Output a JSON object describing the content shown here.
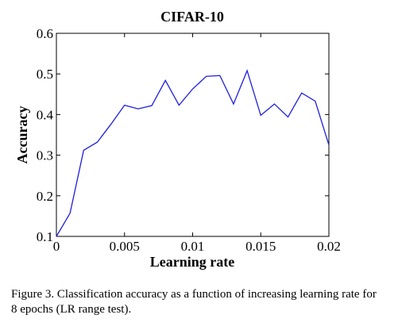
{
  "chart_data": {
    "type": "line",
    "title": "CIFAR-10",
    "xlabel": "Learning rate",
    "ylabel": "Accuracy",
    "xlim": [
      0,
      0.02
    ],
    "ylim": [
      0.1,
      0.6
    ],
    "x_ticks": [
      0,
      0.005,
      0.01,
      0.015,
      0.02
    ],
    "x_tick_labels": [
      "0",
      "0.005",
      "0.01",
      "0.015",
      "0.02"
    ],
    "y_ticks": [
      0.1,
      0.2,
      0.3,
      0.4,
      0.5,
      0.6
    ],
    "y_tick_labels": [
      "0.1",
      "0.2",
      "0.3",
      "0.4",
      "0.5",
      "0.6"
    ],
    "grid": false,
    "series": [
      {
        "color": "#1f1fe0",
        "x": [
          0,
          0.001,
          0.002,
          0.003,
          0.004,
          0.005,
          0.006,
          0.007,
          0.008,
          0.009,
          0.01,
          0.011,
          0.012,
          0.013,
          0.014,
          0.015,
          0.016,
          0.017,
          0.018,
          0.019,
          0.02
        ],
        "y": [
          0.1,
          0.157,
          0.312,
          0.332,
          0.376,
          0.423,
          0.414,
          0.422,
          0.484,
          0.423,
          0.463,
          0.494,
          0.496,
          0.426,
          0.508,
          0.398,
          0.426,
          0.394,
          0.453,
          0.433,
          0.325
        ]
      }
    ]
  },
  "caption": "Figure 3. Classification accuracy as a function of increasing learning rate for 8 epochs (LR range test)."
}
